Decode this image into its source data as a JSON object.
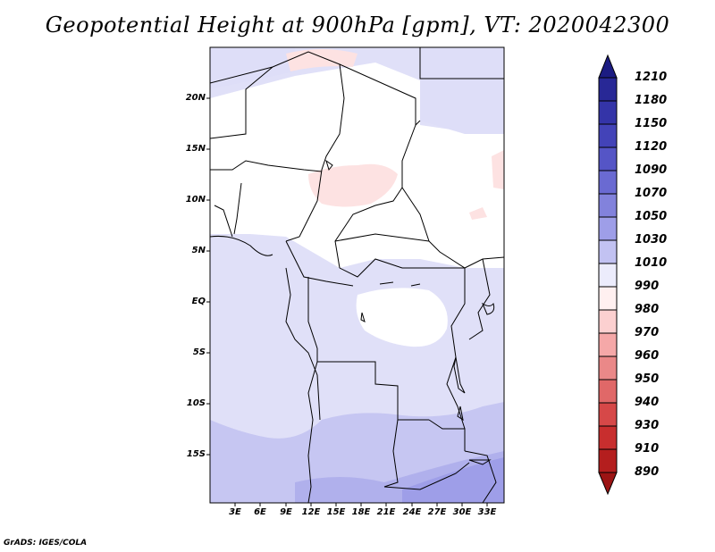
{
  "title": "Geopotential Height at 900hPa [gpm], VT: 2020042300",
  "lat_labels": [
    "20N",
    "15N",
    "10N",
    "5N",
    "EQ",
    "5S",
    "10S",
    "15S"
  ],
  "lon_labels": [
    "3E",
    "6E",
    "9E",
    "12E",
    "15E",
    "18E",
    "21E",
    "24E",
    "27E",
    "30E",
    "33E"
  ],
  "colorbar": {
    "levels": [
      "1210",
      "1180",
      "1150",
      "1120",
      "1090",
      "1070",
      "1050",
      "1030",
      "1010",
      "990",
      "980",
      "970",
      "960",
      "950",
      "940",
      "930",
      "910",
      "890"
    ],
    "colors": [
      "#1c1c82",
      "#282896",
      "#3434a8",
      "#4343b8",
      "#5555c6",
      "#6a6ad2",
      "#8282dc",
      "#9e9ee8",
      "#c2c2f2",
      "#ececfc",
      "#fff0f0",
      "#fcd0d0",
      "#f5a8a8",
      "#ea8888",
      "#e06868",
      "#d64848",
      "#c82e2e",
      "#b41e1e",
      "#9c1414"
    ]
  },
  "footer": "GrADS: IGES/COLA"
}
